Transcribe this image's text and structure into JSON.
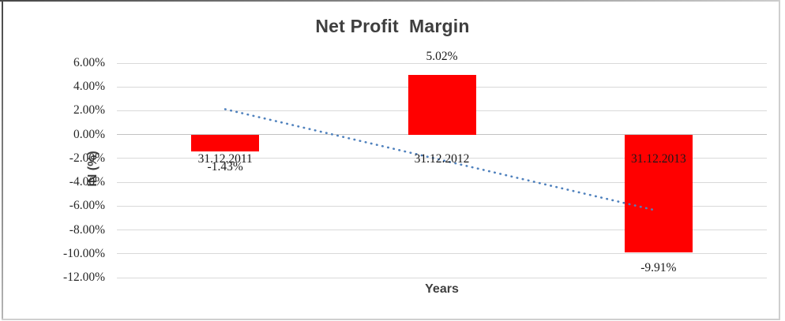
{
  "chart_data": {
    "type": "bar",
    "title": "Net Profit  Margin",
    "xlabel": "Years",
    "ylabel": "IN (%)",
    "categories": [
      "31.12.2011",
      "31.12.2012",
      "31.12.2013"
    ],
    "values": [
      -1.43,
      5.02,
      -9.91
    ],
    "value_labels": [
      "-1.43%",
      "5.02%",
      "-9.91%"
    ],
    "ylim": [
      -12,
      6
    ],
    "ytick_step": 2,
    "ytick_labels": [
      "6.00%",
      "4.00%",
      "2.00%",
      "0.00%",
      "-2.00%",
      "-4.00%",
      "-6.00%",
      "-8.00%",
      "-10.00%",
      "-12.00%"
    ],
    "grid": true,
    "legend": false,
    "bar_color": "#ff0000",
    "gridline_color": "#d9d9d9",
    "trendline": {
      "type": "linear",
      "style": "dotted",
      "color": "#4f81bd",
      "start_value": 2.13,
      "end_value": -6.35
    }
  }
}
